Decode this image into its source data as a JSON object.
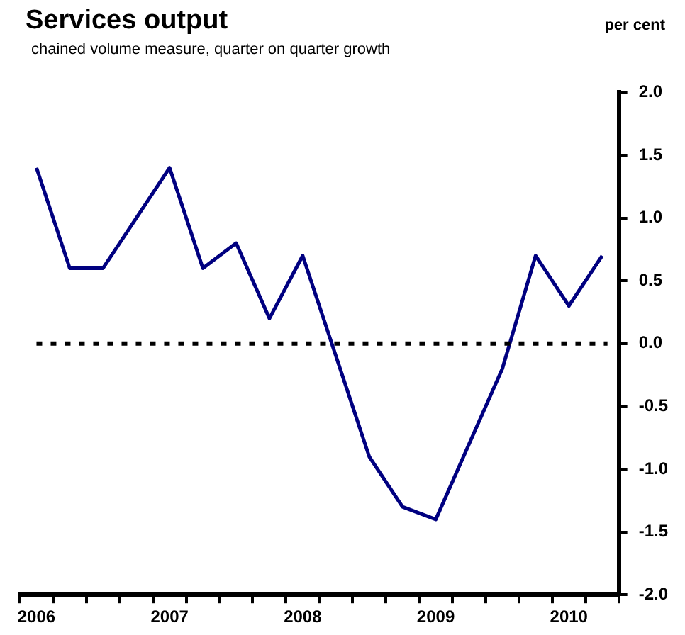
{
  "chart_data": {
    "type": "line",
    "title": "Services output",
    "subtitle": "chained volume measure, quarter on quarter growth",
    "ylabel": "per cent",
    "categories": [
      "2006",
      null,
      null,
      null,
      "2007",
      null,
      null,
      null,
      "2008",
      null,
      null,
      null,
      "2009",
      null,
      null,
      null,
      "2010",
      null
    ],
    "series": [
      {
        "color": "#000080",
        "values": [
          1.4,
          0.6,
          0.6,
          1.0,
          1.4,
          0.6,
          0.8,
          0.2,
          0.7,
          -0.1,
          -0.9,
          -1.3,
          -1.4,
          -0.8,
          -0.2,
          0.7,
          0.3,
          0.7
        ]
      }
    ],
    "ylim": [
      -2,
      2
    ],
    "yticks": [
      {
        "value": -2,
        "label": "-2.0"
      },
      {
        "value": -1.5,
        "label": "-1.5"
      },
      {
        "value": -1,
        "label": "-1.0"
      },
      {
        "value": -0.5,
        "label": "-0.5"
      },
      {
        "value": 0,
        "label": "0.0"
      },
      {
        "value": 0.5,
        "label": "0.5"
      },
      {
        "value": 1,
        "label": "1.0"
      },
      {
        "value": 1.5,
        "label": "1.5"
      },
      {
        "value": 2,
        "label": "2.0"
      }
    ],
    "ref_lines": [
      {
        "axis": "y",
        "value": 0,
        "color": "#000000",
        "line_style": "dotted"
      }
    ],
    "grid": false,
    "legend": false,
    "marker": "none",
    "line_style": "solid"
  }
}
